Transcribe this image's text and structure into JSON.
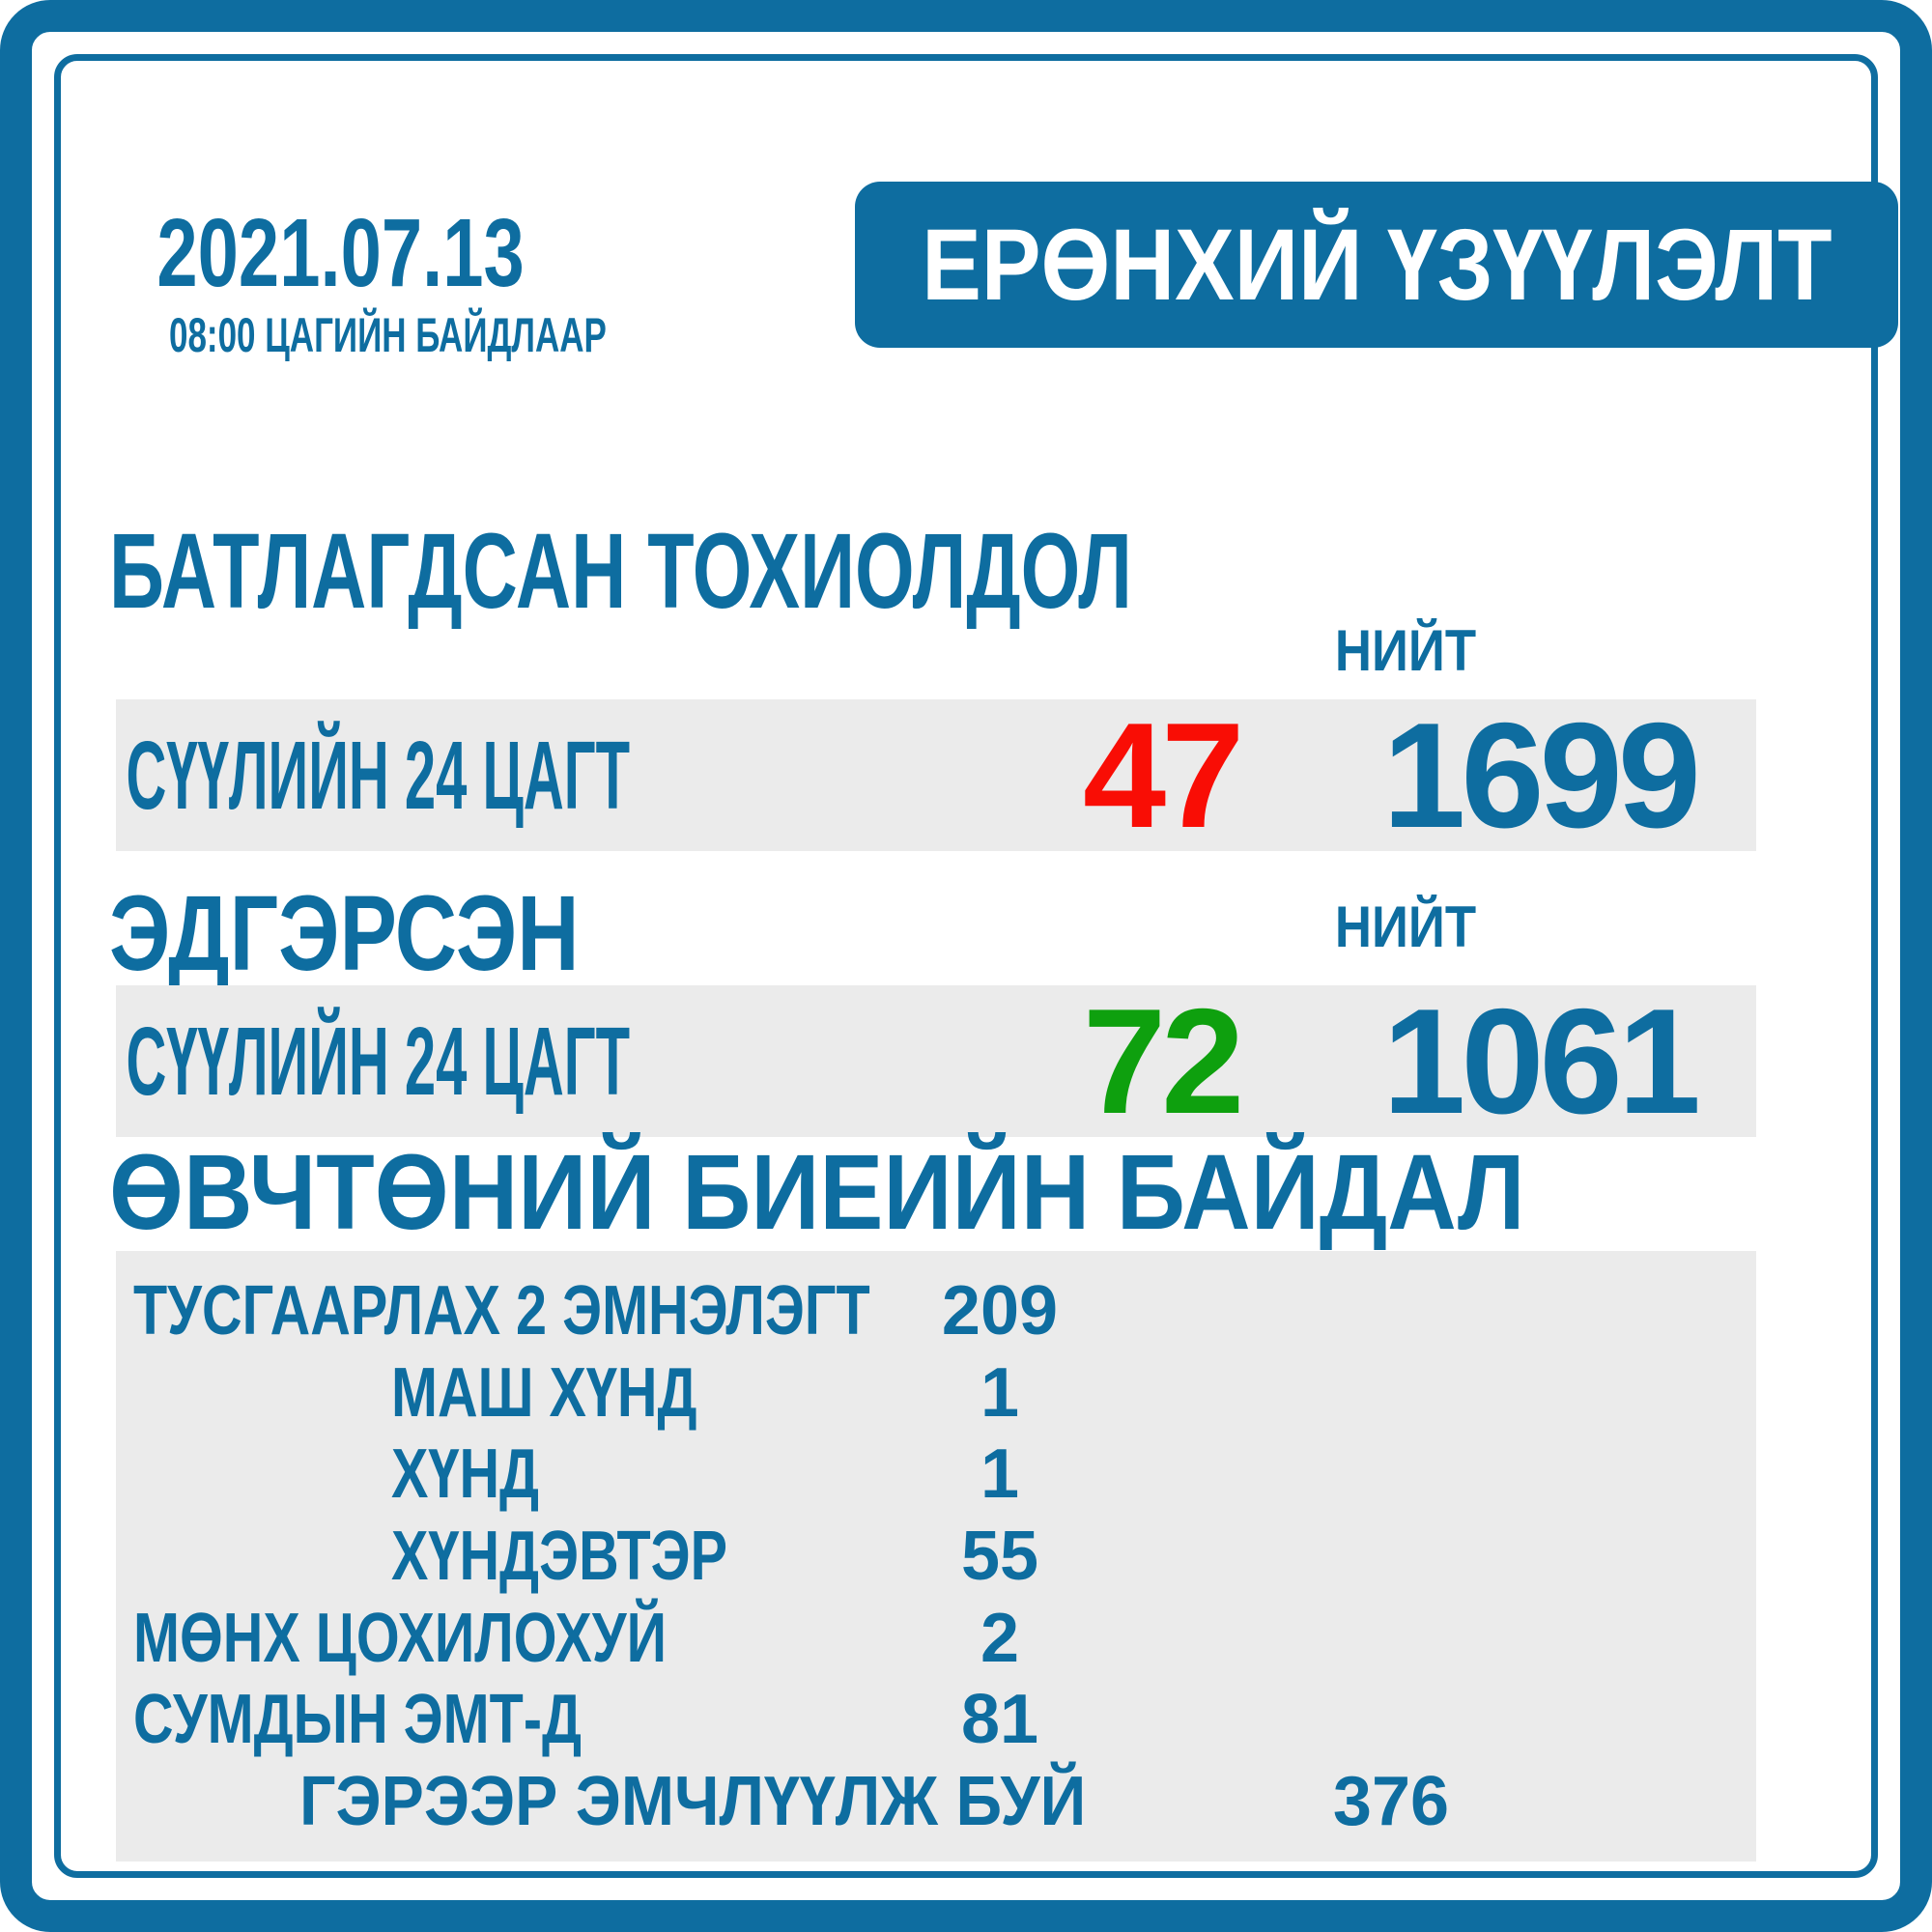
{
  "colors": {
    "blue": "#0E6DA0",
    "red": "#F90D05",
    "green": "#0EA00E",
    "row_bg": "#EBEBEB"
  },
  "header": {
    "date": "2021.07.13",
    "as_of": "08:00 ЦАГИЙН БАЙДЛААР",
    "badge": "ЕРӨНХИЙ ҮЗҮҮЛЭЛТ"
  },
  "confirmed": {
    "title": "БАТЛАГДСАН ТОХИОЛДОЛ",
    "total_label": "НИЙТ",
    "row_label": "СҮҮЛИЙН 24 ЦАГТ",
    "last24": "47",
    "total": "1699"
  },
  "recovered": {
    "title": "ЭДГЭРСЭН",
    "total_label": "НИЙТ",
    "row_label": "СҮҮЛИЙН 24 ЦАГТ",
    "last24": "72",
    "total": "1061"
  },
  "conditions": {
    "title": "ӨВЧТӨНИЙ БИЕИЙН БАЙДАЛ",
    "rows": [
      {
        "label": "ТУСГААРЛАХ 2 ЭМНЭЛЭГТ",
        "value": "209"
      },
      {
        "label": "МАШ ХҮНД",
        "value": "1"
      },
      {
        "label": "ХҮНД",
        "value": "1"
      },
      {
        "label": "ХҮНДЭВТЭР",
        "value": "55"
      },
      {
        "label": "МӨНХ ЦОХИЛОХУЙ",
        "value": "2"
      },
      {
        "label": "СУМДЫН ЭМТ-Д",
        "value": "81"
      },
      {
        "label": "ГЭРЭЭР ЭМЧЛҮҮЛЖ БУЙ",
        "value": "376"
      }
    ]
  },
  "chart_data": {
    "type": "table",
    "title": "ЕРӨНХИЙ ҮЗҮҮЛЭЛТ",
    "date": "2021.07.13",
    "as_of": "08:00 ЦАГИЙН БАЙДЛААР",
    "sections": [
      {
        "title": "БАТЛАГДСАН ТОХИОЛДОЛ",
        "rows": [
          {
            "label": "СҮҮЛИЙН 24 ЦАГТ",
            "value": 47
          },
          {
            "label": "НИЙТ",
            "value": 1699
          }
        ]
      },
      {
        "title": "ЭДГЭРСЭН",
        "rows": [
          {
            "label": "СҮҮЛИЙН 24 ЦАГТ",
            "value": 72
          },
          {
            "label": "НИЙТ",
            "value": 1061
          }
        ]
      },
      {
        "title": "ӨВЧТӨНИЙ БИЕИЙН БАЙДАЛ",
        "rows": [
          {
            "label": "ТУСГААРЛАХ 2 ЭМНЭЛЭГТ",
            "value": 209
          },
          {
            "label": "МАШ ХҮНД",
            "value": 1
          },
          {
            "label": "ХҮНД",
            "value": 1
          },
          {
            "label": "ХҮНДЭВТЭР",
            "value": 55
          },
          {
            "label": "МӨНХ ЦОХИЛОХУЙ",
            "value": 2
          },
          {
            "label": "СУМДЫН ЭМТ-Д",
            "value": 81
          },
          {
            "label": "ГЭРЭЭР ЭМЧЛҮҮЛЖ БУЙ",
            "value": 376
          }
        ]
      }
    ]
  }
}
